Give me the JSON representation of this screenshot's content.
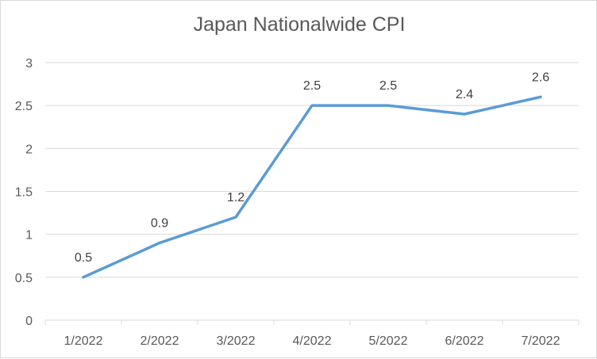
{
  "chart_data": {
    "type": "line",
    "title": "Japan Nationalwide CPI",
    "xlabel": "",
    "ylabel": "",
    "categories": [
      "1/2022",
      "2/2022",
      "3/2022",
      "4/2022",
      "5/2022",
      "6/2022",
      "7/2022"
    ],
    "series": [
      {
        "values": [
          0.5,
          0.9,
          1.2,
          2.5,
          2.5,
          2.4,
          2.6
        ],
        "color": "#5b9bd5",
        "data_labels": [
          "0.5",
          "0.9",
          "1.2",
          "2.5",
          "2.5",
          "2.4",
          "2.6"
        ]
      }
    ],
    "ylim": [
      0,
      3
    ],
    "yticks": [
      "0",
      "0.5",
      "1",
      "1.5",
      "2",
      "2.5",
      "3"
    ],
    "grid": true,
    "legend": "none",
    "colors": {
      "line": "#5b9bd5",
      "grid": "#d9d9d9",
      "text": "#595959"
    }
  }
}
